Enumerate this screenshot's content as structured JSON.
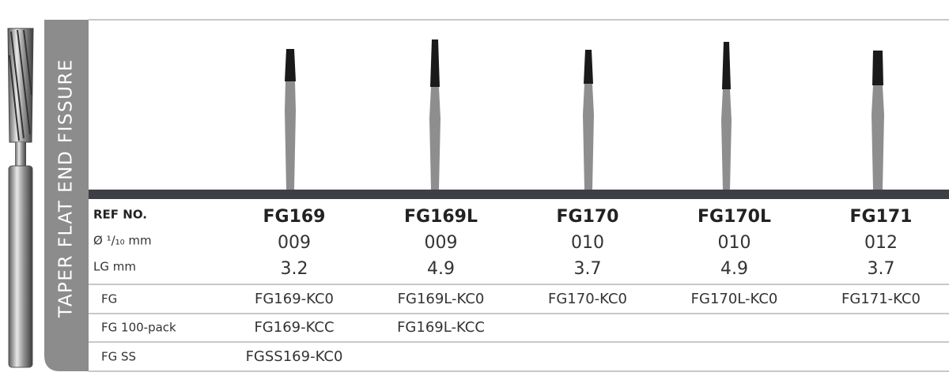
{
  "category": "TAPER FLAT END FISSURE",
  "table": {
    "row_labels": [
      "REF NO.",
      "Ø ¹/₁₀ mm",
      "LG mm"
    ],
    "products": [
      {
        "ref": "FG169",
        "diameter": "009",
        "length": "3.2"
      },
      {
        "ref": "FG169L",
        "diameter": "009",
        "length": "4.9"
      },
      {
        "ref": "FG170",
        "diameter": "010",
        "length": "3.7"
      },
      {
        "ref": "FG170L",
        "diameter": "010",
        "length": "4.9"
      },
      {
        "ref": "FG171",
        "diameter": "012",
        "length": "3.7"
      }
    ],
    "order_rows": [
      {
        "label": "FG",
        "codes": [
          "FG169-KC0",
          "FG169L-KC0",
          "FG170-KC0",
          "FG170L-KC0",
          "FG171-KC0"
        ]
      },
      {
        "label": "FG 100-pack",
        "codes": [
          "FG169-KCC",
          "FG169L-KCC"
        ]
      },
      {
        "label": "FG SS",
        "codes": [
          "FGSS169-KC0"
        ]
      }
    ]
  }
}
